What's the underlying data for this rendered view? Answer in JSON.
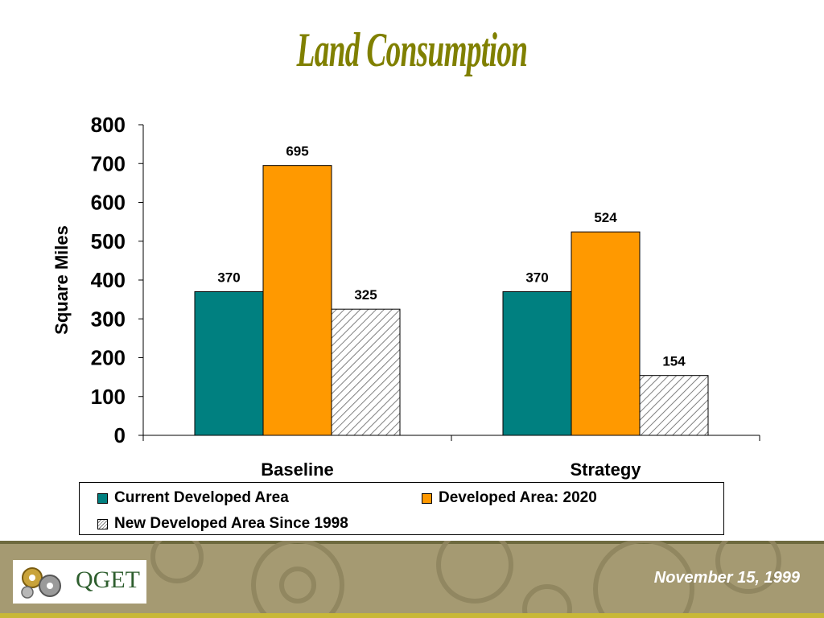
{
  "slide": {
    "title": "Land Consumption"
  },
  "chart_data": {
    "type": "bar",
    "title": "Land Consumption",
    "categories": [
      "Baseline",
      "Strategy"
    ],
    "series": [
      {
        "name": "Current Developed Area",
        "values": [
          370,
          370
        ],
        "color": "#008080",
        "pattern": "solid"
      },
      {
        "name": "Developed Area: 2020",
        "values": [
          695,
          524
        ],
        "color": "#FF9900",
        "pattern": "solid"
      },
      {
        "name": "New Developed Area Since 1998",
        "values": [
          325,
          154
        ],
        "color": "#FFFFFF",
        "pattern": "diagonal-hatch"
      }
    ],
    "xlabel": "",
    "ylabel": "Square Miles",
    "ylim": [
      0,
      800
    ],
    "yticks": [
      0,
      100,
      200,
      300,
      400,
      500,
      600,
      700,
      800
    ],
    "grid": false,
    "legend": "bottom",
    "data_labels": true
  },
  "footer": {
    "logo_text": "QGET",
    "date": "November 15, 1999",
    "background_color": "#A59A72"
  }
}
